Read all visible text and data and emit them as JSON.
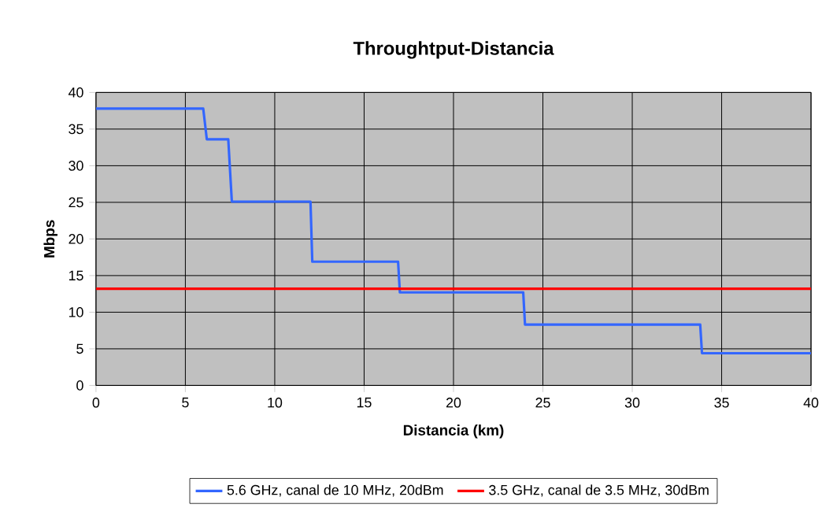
{
  "chart_data": {
    "type": "line",
    "title": "Throughtput-Distancia",
    "xlabel": "Distancia (km)",
    "ylabel": "Mbps",
    "series": [
      {
        "name": "5.6 GHz, canal de 10 MHz, 20dBm",
        "color": "#3366ff",
        "x": [
          0,
          6,
          6.2,
          7.4,
          7.6,
          12,
          12.1,
          16.9,
          17,
          23.9,
          24,
          33.8,
          33.9,
          40
        ],
        "values": [
          37.8,
          37.8,
          33.6,
          33.6,
          25.1,
          25.1,
          16.9,
          16.9,
          12.7,
          12.7,
          8.3,
          8.3,
          4.4,
          4.4
        ]
      },
      {
        "name": "3.5 GHz, canal de 3.5 MHz, 30dBm",
        "color": "#ff0000",
        "x": [
          0,
          40
        ],
        "values": [
          13.2,
          13.2
        ]
      }
    ],
    "xlim": [
      0,
      40
    ],
    "ylim": [
      0,
      40
    ],
    "xticks": [
      0,
      5,
      10,
      15,
      20,
      25,
      30,
      35,
      40
    ],
    "yticks": [
      0,
      5,
      10,
      15,
      20,
      25,
      30,
      35,
      40
    ],
    "grid": true,
    "legend": "bottom",
    "marker": "none",
    "line_style": "solid"
  }
}
